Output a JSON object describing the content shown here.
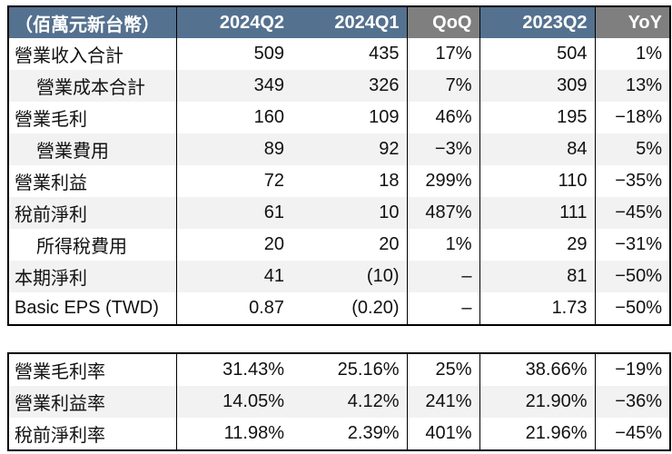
{
  "unit_label": "（佰萬元新台幣）",
  "columns": [
    "2024Q2",
    "2024Q1",
    "QoQ",
    "2023Q2",
    "YoY"
  ],
  "income_table": {
    "rows": [
      {
        "label": "營業收入合計",
        "indent": false,
        "values": [
          "509",
          "435",
          "17%",
          "504",
          "1%"
        ]
      },
      {
        "label": "營業成本合計",
        "indent": true,
        "values": [
          "349",
          "326",
          "7%",
          "309",
          "13%"
        ]
      },
      {
        "label": "營業毛利",
        "indent": false,
        "values": [
          "160",
          "109",
          "46%",
          "195",
          "−18%"
        ]
      },
      {
        "label": "營業費用",
        "indent": true,
        "values": [
          "89",
          "92",
          "−3%",
          "84",
          "5%"
        ]
      },
      {
        "label": "營業利益",
        "indent": false,
        "values": [
          "72",
          "18",
          "299%",
          "110",
          "−35%"
        ]
      },
      {
        "label": "稅前淨利",
        "indent": false,
        "values": [
          "61",
          "10",
          "487%",
          "111",
          "−45%"
        ]
      },
      {
        "label": "所得稅費用",
        "indent": true,
        "values": [
          "20",
          "20",
          "1%",
          "29",
          "−31%"
        ]
      },
      {
        "label": "本期淨利",
        "indent": false,
        "values": [
          "41",
          "(10)",
          "–",
          "81",
          "−50%"
        ]
      },
      {
        "label": "Basic EPS (TWD)",
        "indent": false,
        "values": [
          "0.87",
          "(0.20)",
          "–",
          "1.73",
          "−50%"
        ]
      }
    ]
  },
  "ratio_table": {
    "rows": [
      {
        "label": "營業毛利率",
        "indent": false,
        "values": [
          "31.43%",
          "25.16%",
          "25%",
          "38.66%",
          "−19%"
        ]
      },
      {
        "label": "營業利益率",
        "indent": false,
        "values": [
          "14.05%",
          "4.12%",
          "241%",
          "21.90%",
          "−36%"
        ]
      },
      {
        "label": "稅前淨利率",
        "indent": false,
        "values": [
          "11.98%",
          "2.39%",
          "401%",
          "21.96%",
          "−45%"
        ]
      }
    ]
  },
  "colors": {
    "header_blue": "#54718F",
    "header_gray": "#7F7F7F",
    "row_alt_gray": "#F2F2F2",
    "border_black": "#000000",
    "header_text": "#FFFFFF"
  }
}
